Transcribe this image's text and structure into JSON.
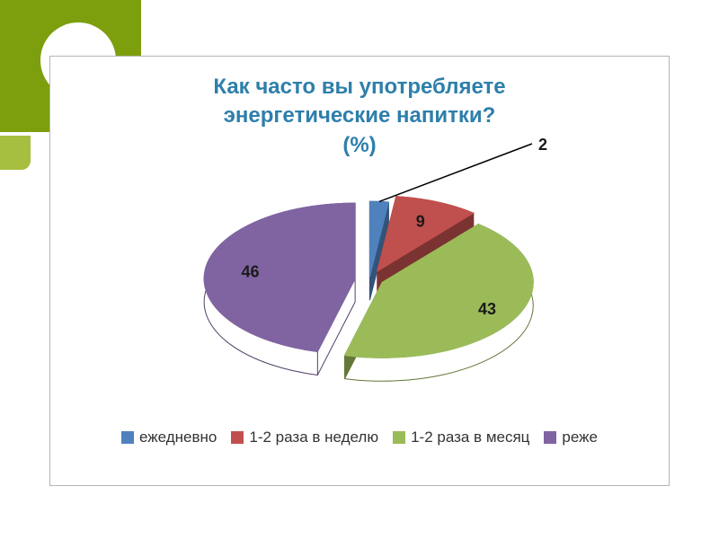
{
  "palette": {
    "decoration_green": "#7d9f0e",
    "decoration_light_green": "#a6bf40",
    "title_color": "#2e7fab",
    "callout_color": "#000000"
  },
  "chart_data": {
    "type": "pie",
    "style": "3d-exploded",
    "title": "Как часто вы употребляете\nэнергетические напитки?\n(%)",
    "unit": "%",
    "categories": [
      "ежедневно",
      "1-2 раза в неделю",
      "1-2 раза в месяц",
      "реже"
    ],
    "values": [
      2,
      9,
      43,
      46
    ],
    "colors": [
      "#4F81BD",
      "#C0504D",
      "#9BBB59",
      "#8064A2"
    ],
    "legend_position": "bottom",
    "data_labels": [
      "2",
      "9",
      "43",
      "46"
    ]
  }
}
